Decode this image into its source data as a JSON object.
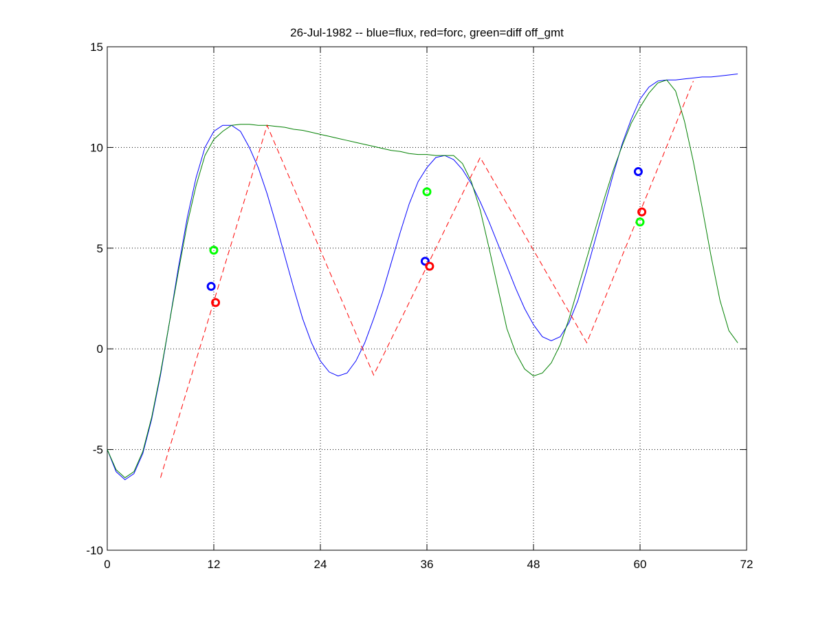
{
  "chart_data": {
    "type": "line",
    "title": "26-Jul-1982 -- blue=flux, red=forc, green=diff off_gmt",
    "xlim": [
      0,
      72
    ],
    "xticks": [
      0,
      12,
      24,
      36,
      48,
      60,
      72
    ],
    "ylim": [
      -10,
      15
    ],
    "yticks": [
      -10,
      -5,
      0,
      5,
      10,
      15
    ],
    "grid": true,
    "series": [
      {
        "color": "#0000ff",
        "style": "solid",
        "x": [
          0,
          1,
          2,
          3,
          4,
          5,
          6,
          7,
          8,
          9,
          10,
          11,
          12,
          13,
          14,
          15,
          16,
          17,
          18,
          19,
          20,
          21,
          22,
          23,
          24,
          25,
          26,
          27,
          28,
          29,
          30,
          31,
          32,
          33,
          34,
          35,
          36,
          37,
          38,
          39,
          40,
          41,
          42,
          43,
          44,
          45,
          46,
          47,
          48,
          49,
          50,
          51,
          52,
          53,
          54,
          55,
          56,
          57,
          58,
          59,
          60,
          61,
          62,
          63,
          64,
          65,
          66,
          67,
          68,
          69,
          70,
          71
        ],
        "values": [
          -5,
          -6.1,
          -6.5,
          -6.2,
          -5.2,
          -3.5,
          -1.3,
          1.3,
          4.0,
          6.5,
          8.5,
          10.0,
          10.8,
          11.1,
          11.1,
          10.8,
          10.0,
          9.0,
          7.7,
          6.2,
          4.6,
          3.0,
          1.5,
          0.3,
          -0.6,
          -1.15,
          -1.35,
          -1.2,
          -0.6,
          0.3,
          1.5,
          2.8,
          4.3,
          5.8,
          7.2,
          8.3,
          9.0,
          9.5,
          9.6,
          9.4,
          8.9,
          8.2,
          7.3,
          6.3,
          5.2,
          4.1,
          3.0,
          2.0,
          1.2,
          0.6,
          0.4,
          0.6,
          1.3,
          2.4,
          3.9,
          5.5,
          7.1,
          8.7,
          10.2,
          11.4,
          12.4,
          13.0,
          13.3,
          13.35,
          13.35,
          13.4,
          13.45,
          13.5,
          13.5,
          13.55,
          13.6,
          13.65
        ]
      },
      {
        "color": "#008000",
        "style": "solid",
        "x": [
          0,
          1,
          2,
          3,
          4,
          5,
          6,
          7,
          8,
          9,
          10,
          11,
          12,
          13,
          14,
          15,
          16,
          17,
          18,
          19,
          20,
          21,
          22,
          23,
          24,
          25,
          26,
          27,
          28,
          29,
          30,
          31,
          32,
          33,
          34,
          35,
          36,
          37,
          38,
          39,
          40,
          41,
          42,
          43,
          44,
          45,
          46,
          47,
          48,
          49,
          50,
          51,
          52,
          53,
          54,
          55,
          56,
          57,
          58,
          59,
          60,
          61,
          62,
          63,
          64,
          65,
          66,
          67,
          68,
          69,
          70,
          71
        ],
        "values": [
          -5,
          -6.0,
          -6.4,
          -6.1,
          -5.1,
          -3.4,
          -1.2,
          1.3,
          3.8,
          6.2,
          8.1,
          9.6,
          10.4,
          10.8,
          11.1,
          11.15,
          11.15,
          11.1,
          11.1,
          11.05,
          11.0,
          10.9,
          10.85,
          10.75,
          10.65,
          10.55,
          10.45,
          10.35,
          10.25,
          10.15,
          10.05,
          9.95,
          9.85,
          9.8,
          9.7,
          9.65,
          9.65,
          9.6,
          9.6,
          9.6,
          9.2,
          8.3,
          6.9,
          5.0,
          3.0,
          1.0,
          -0.2,
          -1.0,
          -1.35,
          -1.2,
          -0.7,
          0.2,
          1.5,
          3.0,
          4.5,
          6.0,
          7.5,
          8.9,
          10.1,
          11.2,
          12.0,
          12.7,
          13.2,
          13.35,
          12.8,
          11.3,
          9.3,
          7.0,
          4.6,
          2.4,
          0.9,
          0.3
        ]
      },
      {
        "color": "#ff0000",
        "style": "dashed",
        "x": [
          6,
          18,
          30,
          42,
          54,
          66
        ],
        "values": [
          -6.4,
          11.1,
          -1.3,
          9.5,
          0.3,
          13.3
        ]
      },
      {
        "color": "#0000ff",
        "style": "circles",
        "x": [
          11.7,
          35.8,
          59.8
        ],
        "values": [
          3.1,
          4.35,
          8.8
        ]
      },
      {
        "color": "#ff0000",
        "style": "circles",
        "x": [
          12.2,
          36.3,
          60.2
        ],
        "values": [
          2.3,
          4.1,
          6.8
        ]
      },
      {
        "color": "#00ff00",
        "style": "circles",
        "x": [
          12,
          36,
          60
        ],
        "values": [
          4.9,
          7.8,
          6.3
        ]
      }
    ]
  }
}
